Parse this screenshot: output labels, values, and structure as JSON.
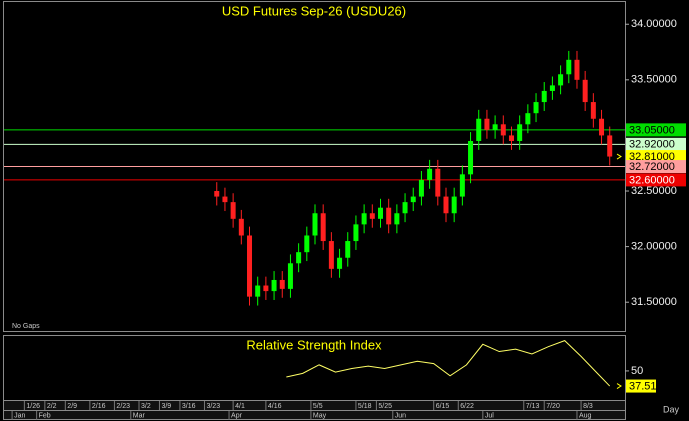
{
  "chart_data": [
    {
      "type": "candlestick",
      "title": "USD Futures Sep-26 (USDU26)",
      "x": [
        47,
        49,
        51,
        53,
        55,
        57,
        59,
        61,
        63,
        65,
        67,
        69,
        71,
        73,
        75,
        77,
        79,
        81,
        83,
        85,
        87,
        89,
        91,
        93,
        95,
        97,
        99,
        101,
        103,
        105,
        107,
        109,
        111,
        113,
        115,
        117,
        119,
        121,
        123,
        125,
        127,
        129,
        131,
        133,
        135,
        137,
        139,
        141,
        143
      ],
      "open": [
        32.5,
        32.45,
        32.4,
        32.25,
        32.1,
        31.55,
        31.65,
        31.6,
        31.7,
        31.62,
        31.85,
        31.95,
        32.1,
        32.3,
        32.05,
        31.8,
        31.9,
        32.05,
        32.2,
        32.3,
        32.25,
        32.35,
        32.2,
        32.3,
        32.4,
        32.45,
        32.6,
        32.7,
        32.45,
        32.3,
        32.45,
        32.65,
        32.95,
        33.15,
        33.05,
        33.1,
        33.0,
        32.95,
        33.1,
        33.2,
        33.3,
        33.4,
        33.45,
        33.55,
        33.68,
        33.5,
        33.3,
        33.15,
        33.0
      ],
      "high": [
        32.58,
        32.53,
        32.48,
        32.33,
        32.18,
        31.73,
        31.73,
        31.78,
        31.78,
        31.93,
        32.03,
        32.18,
        32.38,
        32.38,
        32.13,
        31.98,
        32.13,
        32.28,
        32.38,
        32.38,
        32.43,
        32.43,
        32.38,
        32.48,
        32.53,
        32.68,
        32.78,
        32.78,
        32.53,
        32.53,
        32.73,
        33.03,
        33.23,
        33.23,
        33.18,
        33.18,
        33.08,
        33.18,
        33.28,
        33.38,
        33.48,
        33.53,
        33.63,
        33.76,
        33.76,
        33.58,
        33.38,
        33.23,
        33.08
      ],
      "low": [
        32.37,
        32.32,
        32.17,
        32.02,
        31.47,
        31.47,
        31.52,
        31.52,
        31.54,
        31.54,
        31.77,
        31.87,
        32.02,
        31.97,
        31.72,
        31.72,
        31.82,
        31.97,
        32.12,
        32.17,
        32.17,
        32.12,
        32.12,
        32.22,
        32.32,
        32.37,
        32.52,
        32.37,
        32.22,
        32.22,
        32.37,
        32.57,
        32.87,
        32.97,
        32.97,
        32.92,
        32.87,
        32.87,
        33.02,
        33.12,
        33.22,
        33.32,
        33.37,
        33.47,
        33.42,
        33.22,
        33.07,
        32.92,
        32.73
      ],
      "close": [
        32.45,
        32.4,
        32.25,
        32.1,
        31.55,
        31.65,
        31.6,
        31.7,
        31.62,
        31.85,
        31.95,
        32.1,
        32.3,
        32.05,
        31.8,
        31.9,
        32.05,
        32.2,
        32.3,
        32.25,
        32.35,
        32.2,
        32.3,
        32.4,
        32.45,
        32.6,
        32.7,
        32.45,
        32.3,
        32.45,
        32.65,
        32.95,
        33.15,
        33.05,
        33.1,
        33.0,
        32.95,
        33.1,
        33.2,
        33.3,
        33.4,
        33.45,
        33.55,
        33.68,
        33.5,
        33.3,
        33.15,
        33.0,
        32.81
      ],
      "up_color": "#00ff00",
      "down_color": "#ff2020",
      "xlim": [
        -4,
        146
      ],
      "ylim": [
        31.25,
        34.2
      ],
      "yticks": [
        {
          "value": 34,
          "label": "34.00000"
        },
        {
          "value": 33.5,
          "label": "33.50000"
        },
        {
          "value": 32.5,
          "label": "32.50000"
        },
        {
          "value": 32,
          "label": "32.00000"
        },
        {
          "value": 31.5,
          "label": "31.50000"
        }
      ],
      "levels": [
        {
          "value": 33.05,
          "label": "33.05000",
          "color": "#00dd00",
          "text_color": "#000000",
          "line": true
        },
        {
          "value": 32.92,
          "label": "32.92000",
          "color": "#ccffcc",
          "text_color": "#000000",
          "line": true
        },
        {
          "value": 32.81,
          "label": "32.81000",
          "color": "#ffff00",
          "text_color": "#000000",
          "line": false
        },
        {
          "value": 32.72,
          "label": "32.72000",
          "color": "#ff9e9e",
          "text_color": "#000000",
          "line": true
        },
        {
          "value": 32.6,
          "label": "32.60000",
          "color": "#ee0000",
          "text_color": "#ffffff",
          "line": true
        }
      ],
      "xticks": [
        {
          "value": 0,
          "label": "1/26"
        },
        {
          "value": 5,
          "label": "2/2"
        },
        {
          "value": 10,
          "label": "2/9"
        },
        {
          "value": 16,
          "label": "2/16"
        },
        {
          "value": 22,
          "label": "2/23"
        },
        {
          "value": 28,
          "label": "3/2"
        },
        {
          "value": 33,
          "label": "3/9"
        },
        {
          "value": 38,
          "label": "3/16"
        },
        {
          "value": 44,
          "label": "3/23"
        },
        {
          "value": 51,
          "label": "4/1"
        },
        {
          "value": 59,
          "label": "4/16"
        },
        {
          "value": 70,
          "label": "5/5"
        },
        {
          "value": 81,
          "label": "5/18"
        },
        {
          "value": 86,
          "label": "5/25"
        },
        {
          "value": 100,
          "label": "6/15"
        },
        {
          "value": 106,
          "label": "6/22"
        },
        {
          "value": 122,
          "label": "7/13"
        },
        {
          "value": 127,
          "label": "7/20"
        },
        {
          "value": 136,
          "label": "8/3"
        }
      ],
      "month_ticks": [
        {
          "value": -3,
          "label": "Jan"
        },
        {
          "value": 3,
          "label": "Feb"
        },
        {
          "value": 26,
          "label": "Mar"
        },
        {
          "value": 50,
          "label": "Apr"
        },
        {
          "value": 70,
          "label": "May"
        },
        {
          "value": 90,
          "label": "Jun"
        },
        {
          "value": 112,
          "label": "Jul"
        },
        {
          "value": 135,
          "label": "Aug"
        }
      ],
      "gap_label": "No Gaps",
      "interval_label": "Day"
    },
    {
      "type": "line",
      "title": "Relative Strength Index",
      "x": [
        64,
        68,
        72,
        76,
        80,
        84,
        88,
        92,
        96,
        100,
        104,
        108,
        112,
        116,
        120,
        124,
        128,
        132,
        136,
        140,
        143
      ],
      "values": [
        45,
        48,
        55,
        49,
        52,
        54,
        52,
        55,
        58,
        56,
        46,
        55,
        72,
        66,
        68,
        64,
        70,
        75,
        62,
        48,
        37.51
      ],
      "value_labels": [
        null,
        null,
        null,
        null,
        null,
        null,
        null,
        null,
        null,
        null,
        null,
        null,
        null,
        null,
        null,
        null,
        null,
        null,
        null,
        null,
        "37.51"
      ],
      "color": "#ffff66",
      "last_color": "#ffff00",
      "xlim": [
        -4,
        146
      ],
      "ylim": [
        26,
        78
      ],
      "yticks": [
        50
      ]
    }
  ]
}
